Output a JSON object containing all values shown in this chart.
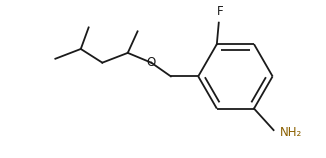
{
  "bg_color": "#ffffff",
  "line_color": "#1a1a1a",
  "label_color_F": "#1a1a1a",
  "label_color_O": "#1a1a1a",
  "label_color_NH2": "#8B6000",
  "line_width": 1.3,
  "font_size": 8.5,
  "figsize": [
    3.26,
    1.58
  ],
  "dpi": 100,
  "F_label": "F",
  "O_label": "O",
  "NH2_label": "NH₂"
}
